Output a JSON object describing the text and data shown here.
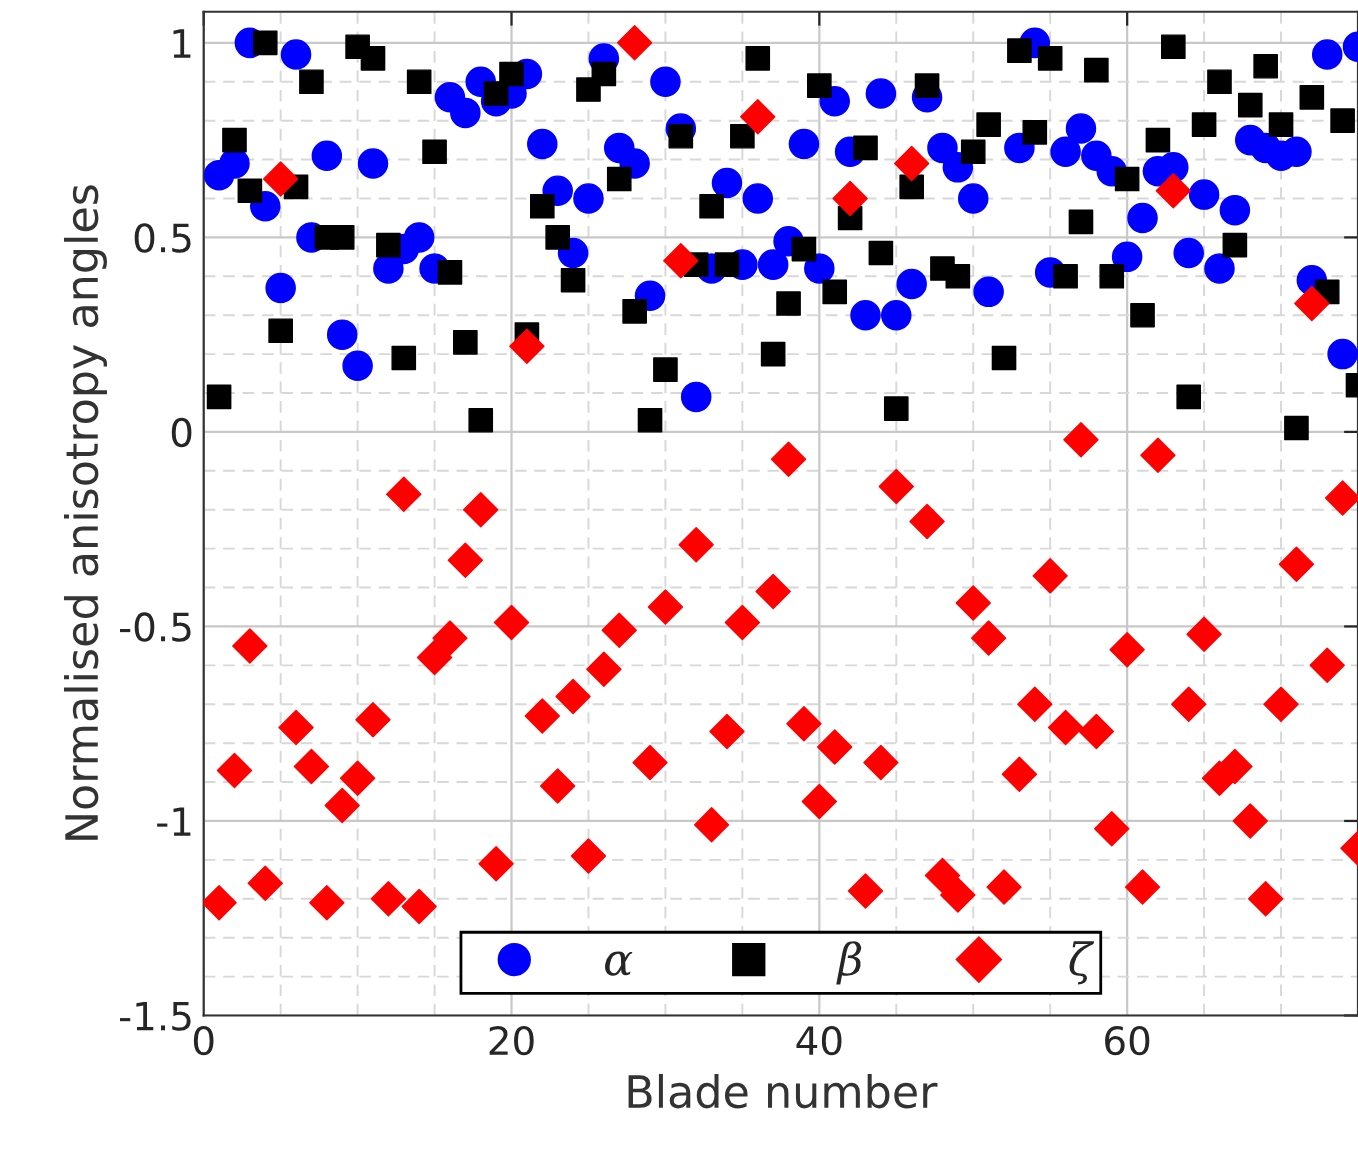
{
  "chart_data": {
    "type": "scatter",
    "xlabel": "Blade number",
    "ylabel": "Normalised anisotropy angles",
    "x": [
      1,
      2,
      3,
      4,
      5,
      6,
      7,
      8,
      9,
      10,
      11,
      12,
      13,
      14,
      15,
      16,
      17,
      18,
      19,
      20,
      21,
      22,
      23,
      24,
      25,
      26,
      27,
      28,
      29,
      30,
      31,
      32,
      33,
      34,
      35,
      36,
      37,
      38,
      39,
      40,
      41,
      42,
      43,
      44,
      45,
      46,
      47,
      48,
      49,
      50,
      51,
      52,
      53,
      54,
      55,
      56,
      57,
      58,
      59,
      60,
      61,
      62,
      63,
      64,
      65,
      66,
      67,
      68,
      69,
      70,
      71,
      72,
      73,
      74,
      75
    ],
    "series": [
      {
        "name": "α",
        "color": "#0000ff",
        "marker": "circle",
        "values": [
          0.66,
          0.69,
          1.0,
          0.58,
          0.37,
          0.97,
          0.5,
          0.71,
          0.25,
          0.17,
          0.69,
          0.42,
          0.47,
          0.5,
          0.42,
          0.86,
          0.82,
          0.9,
          0.85,
          0.87,
          0.92,
          0.74,
          0.62,
          0.46,
          0.6,
          0.96,
          0.73,
          0.69,
          0.35,
          0.9,
          0.78,
          0.09,
          0.42,
          0.64,
          0.43,
          0.6,
          0.43,
          0.49,
          0.74,
          0.42,
          0.85,
          0.72,
          0.3,
          0.87,
          0.3,
          0.38,
          0.86,
          0.73,
          0.68,
          0.6,
          0.36,
          null,
          0.73,
          1.0,
          0.41,
          0.72,
          0.78,
          0.71,
          0.67,
          0.45,
          0.55,
          0.67,
          0.68,
          0.46,
          0.61,
          0.42,
          0.57,
          0.75,
          0.73,
          0.71,
          0.72,
          0.39,
          0.97,
          0.2,
          0.99
        ]
      },
      {
        "name": "β",
        "color": "#000000",
        "marker": "square",
        "values": [
          0.09,
          0.75,
          0.62,
          1.0,
          0.26,
          0.63,
          0.9,
          0.5,
          0.5,
          0.99,
          0.96,
          0.48,
          0.19,
          0.9,
          0.72,
          0.41,
          0.23,
          0.03,
          0.87,
          0.92,
          0.25,
          0.58,
          0.5,
          0.39,
          0.88,
          0.92,
          0.65,
          0.31,
          0.03,
          0.16,
          0.76,
          0.43,
          0.58,
          0.43,
          0.76,
          0.96,
          0.2,
          0.33,
          0.47,
          0.89,
          0.36,
          0.55,
          0.73,
          0.46,
          0.06,
          0.63,
          0.89,
          0.42,
          0.4,
          0.72,
          0.79,
          0.19,
          0.98,
          0.77,
          0.96,
          0.4,
          0.54,
          0.93,
          0.4,
          0.65,
          0.3,
          0.75,
          0.99,
          0.09,
          0.79,
          0.9,
          0.48,
          0.84,
          0.94,
          0.79,
          0.01,
          0.86,
          0.36,
          0.8,
          0.12
        ]
      },
      {
        "name": "ζ",
        "color": "#ff0000",
        "marker": "diamond",
        "values": [
          -1.21,
          -0.87,
          -0.55,
          -1.16,
          0.65,
          -0.76,
          -0.86,
          -1.21,
          -0.96,
          -0.89,
          -0.74,
          -1.2,
          -0.16,
          -1.22,
          -0.58,
          -0.53,
          -0.33,
          -0.2,
          -1.11,
          -0.49,
          0.22,
          -0.73,
          -0.91,
          -0.68,
          -1.09,
          -0.61,
          -0.51,
          1.0,
          -0.85,
          -0.45,
          0.44,
          -0.29,
          -1.01,
          -0.77,
          -0.49,
          0.81,
          -0.41,
          -0.07,
          -0.75,
          -0.95,
          -0.81,
          0.6,
          -1.18,
          -0.85,
          -0.14,
          0.69,
          -0.23,
          -1.14,
          -1.19,
          -0.44,
          -0.53,
          -1.17,
          -0.88,
          -0.7,
          -0.37,
          -0.76,
          -0.02,
          -0.77,
          -1.02,
          -0.56,
          -1.17,
          -0.06,
          0.62,
          -0.7,
          -0.52,
          -0.89,
          -0.86,
          -1.0,
          -1.2,
          -0.7,
          -0.34,
          0.33,
          -0.6,
          -0.17,
          -1.07
        ]
      }
    ],
    "xlim": [
      0,
      75
    ],
    "xticks": [
      0,
      20,
      40,
      60
    ],
    "ylim": [
      -1.5,
      1.08
    ],
    "yticks": [
      -1.5,
      -1,
      -0.5,
      0,
      0.5,
      1
    ],
    "grid": true,
    "legend": "bottom"
  }
}
